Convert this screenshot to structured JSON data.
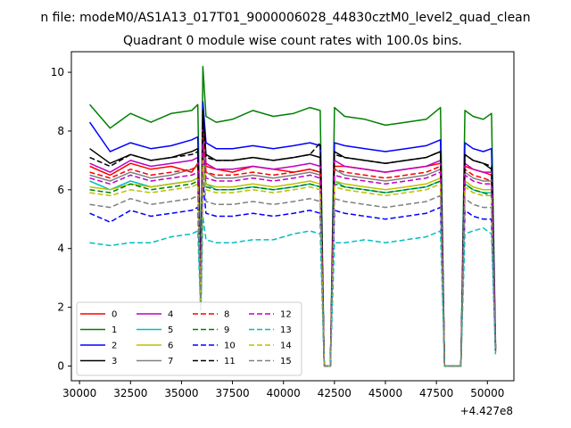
{
  "figure": {
    "suptitle": "n file: modeM0/AS1A13_017T01_9000006028_44830cztM0_level2_quad_clean"
  },
  "chart_data": {
    "type": "line",
    "title": "Quadrant 0 module wise count rates with 100.0s bins.",
    "xlabel": "",
    "ylabel": "",
    "x_offset_label": "+4.427e8",
    "xlim": [
      29600,
      51300
    ],
    "ylim": [
      -0.5,
      10.7
    ],
    "x_ticks": [
      30000,
      32500,
      35000,
      37500,
      40000,
      42500,
      45000,
      47500,
      50000
    ],
    "x_tick_labels": [
      "30000",
      "32500",
      "35000",
      "37500",
      "40000",
      "42500",
      "45000",
      "47500",
      "50000"
    ],
    "y_ticks": [
      0,
      2,
      4,
      6,
      8,
      10
    ],
    "y_tick_labels": [
      "0",
      "2",
      "4",
      "6",
      "8",
      "10"
    ],
    "grid": false,
    "legend_position": "lower-left",
    "legend_columns": 4,
    "x": [
      30500,
      31500,
      32500,
      33500,
      34500,
      35500,
      35800,
      35950,
      36050,
      36200,
      36700,
      37500,
      38500,
      39500,
      40500,
      41300,
      41800,
      42000,
      42100,
      42300,
      42500,
      43000,
      44000,
      45000,
      46000,
      47000,
      47700,
      47900,
      48100,
      48400,
      48700,
      48900,
      49300,
      49800,
      50200,
      50400
    ],
    "series": [
      {
        "name": "0",
        "color": "#ff0000",
        "dash": "solid",
        "values": [
          6.8,
          6.5,
          6.9,
          6.7,
          6.8,
          6.6,
          6.9,
          2.2,
          8.8,
          6.8,
          6.7,
          6.6,
          6.8,
          6.7,
          6.6,
          6.7,
          6.6,
          0.0,
          0.0,
          0.0,
          6.8,
          6.8,
          6.7,
          6.6,
          6.7,
          6.8,
          6.9,
          0.0,
          0.0,
          0.0,
          0.0,
          6.8,
          6.7,
          6.6,
          6.5,
          0.6
        ]
      },
      {
        "name": "1",
        "color": "#008000",
        "dash": "solid",
        "values": [
          8.9,
          8.1,
          8.6,
          8.3,
          8.6,
          8.7,
          8.9,
          2.8,
          10.2,
          8.5,
          8.3,
          8.4,
          8.7,
          8.5,
          8.6,
          8.8,
          8.7,
          0.0,
          0.0,
          0.0,
          8.8,
          8.5,
          8.4,
          8.2,
          8.3,
          8.4,
          8.8,
          0.0,
          0.0,
          0.0,
          0.0,
          8.7,
          8.5,
          8.4,
          8.6,
          0.8
        ]
      },
      {
        "name": "2",
        "color": "#0000ff",
        "dash": "solid",
        "values": [
          8.3,
          7.3,
          7.6,
          7.4,
          7.5,
          7.7,
          7.8,
          2.6,
          9.0,
          7.6,
          7.4,
          7.4,
          7.5,
          7.4,
          7.5,
          7.6,
          7.5,
          0.0,
          0.0,
          0.0,
          7.6,
          7.5,
          7.4,
          7.3,
          7.4,
          7.5,
          7.7,
          0.0,
          0.0,
          0.0,
          0.0,
          7.6,
          7.4,
          7.3,
          7.4,
          0.7
        ]
      },
      {
        "name": "3",
        "color": "#000000",
        "dash": "solid",
        "values": [
          7.4,
          6.9,
          7.2,
          7.0,
          7.1,
          7.3,
          7.4,
          2.4,
          8.7,
          7.2,
          7.0,
          7.0,
          7.1,
          7.0,
          7.1,
          7.2,
          7.1,
          0.0,
          0.0,
          0.0,
          7.3,
          7.1,
          7.0,
          6.9,
          7.0,
          7.1,
          7.3,
          0.0,
          0.0,
          0.0,
          0.0,
          7.2,
          7.0,
          6.9,
          6.7,
          0.6
        ]
      },
      {
        "name": "4",
        "color": "#bf00bf",
        "dash": "solid",
        "values": [
          6.9,
          6.6,
          7.0,
          6.8,
          6.9,
          7.0,
          7.1,
          2.3,
          8.2,
          6.9,
          6.7,
          6.7,
          6.8,
          6.7,
          6.8,
          6.9,
          6.8,
          0.0,
          0.0,
          0.0,
          7.0,
          6.8,
          6.7,
          6.6,
          6.7,
          6.8,
          7.0,
          0.0,
          0.0,
          0.0,
          0.0,
          6.9,
          6.7,
          6.6,
          6.6,
          0.6
        ]
      },
      {
        "name": "5",
        "color": "#00bfbf",
        "dash": "solid",
        "values": [
          6.3,
          6.0,
          6.3,
          6.1,
          6.2,
          6.3,
          6.4,
          2.1,
          7.2,
          6.2,
          6.0,
          6.0,
          6.1,
          6.0,
          6.1,
          6.2,
          6.1,
          0.0,
          0.0,
          0.0,
          6.3,
          6.1,
          6.0,
          5.9,
          6.0,
          6.1,
          6.3,
          0.0,
          0.0,
          0.0,
          0.0,
          6.2,
          6.0,
          5.9,
          5.9,
          0.5
        ]
      },
      {
        "name": "6",
        "color": "#bfbf00",
        "dash": "solid",
        "values": [
          6.1,
          6.0,
          6.2,
          6.1,
          6.2,
          6.3,
          6.4,
          2.1,
          7.3,
          6.2,
          6.1,
          6.1,
          6.2,
          6.1,
          6.2,
          6.3,
          6.2,
          0.0,
          0.0,
          0.0,
          6.3,
          6.2,
          6.1,
          6.0,
          6.1,
          6.2,
          6.4,
          0.0,
          0.0,
          0.0,
          0.0,
          6.3,
          6.1,
          6.0,
          6.0,
          0.5
        ]
      },
      {
        "name": "7",
        "color": "#808080",
        "dash": "solid",
        "values": [
          6.5,
          6.3,
          6.6,
          6.4,
          6.5,
          6.7,
          6.8,
          2.2,
          7.8,
          6.6,
          6.4,
          6.4,
          6.5,
          6.4,
          6.5,
          6.6,
          6.5,
          0.0,
          0.0,
          0.0,
          6.7,
          6.5,
          6.4,
          6.3,
          6.4,
          6.5,
          6.7,
          0.0,
          0.0,
          0.0,
          0.0,
          6.6,
          6.4,
          6.3,
          6.3,
          0.6
        ]
      },
      {
        "name": "8",
        "color": "#ff0000",
        "dash": "dashed",
        "values": [
          6.6,
          6.4,
          6.7,
          6.5,
          6.6,
          6.7,
          6.8,
          2.2,
          7.9,
          6.6,
          6.5,
          6.5,
          6.6,
          6.5,
          6.6,
          6.7,
          6.6,
          0.0,
          0.0,
          0.0,
          6.7,
          6.6,
          6.5,
          6.4,
          6.5,
          6.6,
          6.8,
          0.0,
          0.0,
          0.0,
          0.0,
          6.7,
          6.5,
          6.4,
          6.3,
          0.6
        ]
      },
      {
        "name": "9",
        "color": "#008000",
        "dash": "dashed",
        "values": [
          6.0,
          5.9,
          6.2,
          6.0,
          6.1,
          6.2,
          6.3,
          2.1,
          7.2,
          6.1,
          6.0,
          6.0,
          6.1,
          6.0,
          6.1,
          6.2,
          6.1,
          0.0,
          0.0,
          0.0,
          6.2,
          6.1,
          6.0,
          5.9,
          6.0,
          6.1,
          6.3,
          0.0,
          0.0,
          0.0,
          0.0,
          6.2,
          6.0,
          5.9,
          5.8,
          0.5
        ]
      },
      {
        "name": "10",
        "color": "#0000ff",
        "dash": "dashed",
        "values": [
          5.2,
          4.9,
          5.3,
          5.1,
          5.2,
          5.3,
          5.4,
          1.9,
          6.3,
          5.2,
          5.1,
          5.1,
          5.2,
          5.1,
          5.2,
          5.3,
          5.2,
          0.0,
          0.0,
          0.0,
          5.3,
          5.2,
          5.1,
          5.0,
          5.1,
          5.2,
          5.4,
          0.0,
          0.0,
          0.0,
          0.0,
          5.3,
          5.1,
          5.0,
          5.0,
          0.5
        ]
      },
      {
        "name": "11",
        "color": "#000000",
        "dash": "dashed",
        "values": [
          7.1,
          6.8,
          7.2,
          7.0,
          7.1,
          7.2,
          7.3,
          2.4,
          8.5,
          7.1,
          7.0,
          7.0,
          7.1,
          7.0,
          7.1,
          7.2,
          7.6,
          0.0,
          0.0,
          0.0,
          7.2,
          7.1,
          7.0,
          6.9,
          7.0,
          7.1,
          7.3,
          0.0,
          0.0,
          0.0,
          0.0,
          7.2,
          7.0,
          6.9,
          6.8,
          0.6
        ]
      },
      {
        "name": "12",
        "color": "#bf00bf",
        "dash": "dashed",
        "values": [
          6.4,
          6.2,
          6.5,
          6.3,
          6.4,
          6.5,
          6.6,
          2.2,
          7.6,
          6.4,
          6.3,
          6.3,
          6.4,
          6.3,
          6.4,
          6.5,
          6.4,
          0.0,
          0.0,
          0.0,
          6.5,
          6.4,
          6.3,
          6.2,
          6.3,
          6.4,
          6.6,
          0.0,
          0.0,
          0.0,
          0.0,
          6.5,
          6.3,
          6.2,
          6.2,
          0.6
        ]
      },
      {
        "name": "13",
        "color": "#00bfbf",
        "dash": "dashed",
        "values": [
          4.2,
          4.1,
          4.2,
          4.2,
          4.4,
          4.5,
          4.6,
          1.7,
          5.1,
          4.3,
          4.2,
          4.2,
          4.3,
          4.3,
          4.5,
          4.6,
          4.5,
          0.0,
          0.0,
          0.0,
          4.2,
          4.2,
          4.3,
          4.2,
          4.3,
          4.4,
          4.6,
          0.0,
          0.0,
          0.0,
          0.0,
          4.5,
          4.6,
          4.7,
          4.5,
          0.4
        ]
      },
      {
        "name": "14",
        "color": "#bfbf00",
        "dash": "dashed",
        "values": [
          5.9,
          5.8,
          6.0,
          5.9,
          6.0,
          6.1,
          6.2,
          2.0,
          7.0,
          6.0,
          5.9,
          5.9,
          6.0,
          5.9,
          6.0,
          6.1,
          6.0,
          0.0,
          0.0,
          0.0,
          6.1,
          6.0,
          5.9,
          5.8,
          5.9,
          6.0,
          6.2,
          0.0,
          0.0,
          0.0,
          0.0,
          6.1,
          5.9,
          5.8,
          5.8,
          0.5
        ]
      },
      {
        "name": "15",
        "color": "#808080",
        "dash": "dashed",
        "values": [
          5.5,
          5.4,
          5.7,
          5.5,
          5.6,
          5.7,
          5.8,
          2.0,
          6.6,
          5.6,
          5.5,
          5.5,
          5.6,
          5.5,
          5.6,
          5.7,
          5.6,
          0.0,
          0.0,
          0.0,
          5.7,
          5.6,
          5.5,
          5.4,
          5.5,
          5.6,
          5.8,
          0.0,
          0.0,
          0.0,
          0.0,
          5.7,
          5.5,
          5.4,
          5.4,
          0.5
        ]
      }
    ]
  }
}
